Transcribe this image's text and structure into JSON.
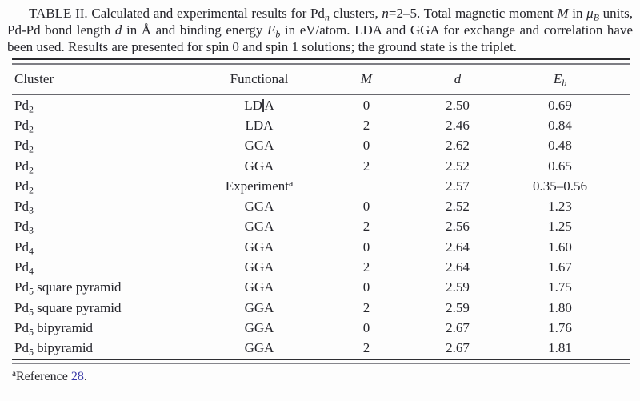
{
  "colors": {
    "reference_link": "#3a3aa8",
    "text": "#26262c",
    "rule_dark": "#2a2a2e",
    "rule_gray": "#7e7e84"
  },
  "caption": {
    "segments": [
      {
        "t": "TABLE II. Calculated and experimental results for Pd"
      },
      {
        "t": "n",
        "s": "sub",
        "i": true
      },
      {
        "t": " clusters, "
      },
      {
        "t": "n",
        "i": true
      },
      {
        "t": "=2–5. Total magnetic moment "
      },
      {
        "t": "M",
        "i": true
      },
      {
        "t": " in "
      },
      {
        "t": "μ",
        "i": true
      },
      {
        "t": "B",
        "s": "sub",
        "i": true
      },
      {
        "t": " units, Pd-Pd bond length "
      },
      {
        "t": "d",
        "i": true
      },
      {
        "t": " in Å and binding energy "
      },
      {
        "t": "E",
        "i": true
      },
      {
        "t": "b",
        "s": "sub",
        "i": true
      },
      {
        "t": " in eV/atom. LDA and GGA for exchange and correlation have been used. Results are presented for spin 0 and spin 1 solutions; the ground state is the triplet."
      }
    ]
  },
  "table": {
    "column_headers": [
      [
        {
          "t": "Cluster"
        }
      ],
      [
        {
          "t": "Functional"
        }
      ],
      [
        {
          "t": "M",
          "i": true
        }
      ],
      [
        {
          "t": "d",
          "i": true
        }
      ],
      [
        {
          "t": "E",
          "i": true
        },
        {
          "t": "b",
          "s": "sub",
          "i": true
        }
      ]
    ],
    "rows": [
      {
        "cells": [
          [
            {
              "t": "Pd"
            },
            {
              "t": "2",
              "s": "sub"
            }
          ],
          [
            {
              "t": "LD"
            },
            {
              "t": "",
              "s": "caret"
            },
            {
              "t": "A"
            }
          ],
          [
            {
              "t": "0"
            }
          ],
          [
            {
              "t": "2.50"
            }
          ],
          [
            {
              "t": "0.69"
            }
          ]
        ]
      },
      {
        "cells": [
          [
            {
              "t": "Pd"
            },
            {
              "t": "2",
              "s": "sub"
            }
          ],
          [
            {
              "t": "LDA"
            }
          ],
          [
            {
              "t": "2"
            }
          ],
          [
            {
              "t": "2.46"
            }
          ],
          [
            {
              "t": "0.84"
            }
          ]
        ]
      },
      {
        "cells": [
          [
            {
              "t": "Pd"
            },
            {
              "t": "2",
              "s": "sub"
            }
          ],
          [
            {
              "t": "GGA"
            }
          ],
          [
            {
              "t": "0"
            }
          ],
          [
            {
              "t": "2.62"
            }
          ],
          [
            {
              "t": "0.48"
            }
          ]
        ]
      },
      {
        "cells": [
          [
            {
              "t": "Pd"
            },
            {
              "t": "2",
              "s": "sub"
            }
          ],
          [
            {
              "t": "GGA"
            }
          ],
          [
            {
              "t": "2"
            }
          ],
          [
            {
              "t": "2.52"
            }
          ],
          [
            {
              "t": "0.65"
            }
          ]
        ]
      },
      {
        "cells": [
          [
            {
              "t": "Pd"
            },
            {
              "t": "2",
              "s": "sub"
            }
          ],
          [
            {
              "t": "Experiment"
            },
            {
              "t": "a",
              "s": "sup"
            }
          ],
          [],
          [
            {
              "t": "2.57"
            }
          ],
          [
            {
              "t": "0.35–0.56"
            }
          ]
        ]
      },
      {
        "cells": [
          [
            {
              "t": "Pd"
            },
            {
              "t": "3",
              "s": "sub"
            }
          ],
          [
            {
              "t": "GGA"
            }
          ],
          [
            {
              "t": "0"
            }
          ],
          [
            {
              "t": "2.52"
            }
          ],
          [
            {
              "t": "1.23"
            }
          ]
        ]
      },
      {
        "cells": [
          [
            {
              "t": "Pd"
            },
            {
              "t": "3",
              "s": "sub"
            }
          ],
          [
            {
              "t": "GGA"
            }
          ],
          [
            {
              "t": "2"
            }
          ],
          [
            {
              "t": "2.56"
            }
          ],
          [
            {
              "t": "1.25"
            }
          ]
        ]
      },
      {
        "cells": [
          [
            {
              "t": "Pd"
            },
            {
              "t": "4",
              "s": "sub"
            }
          ],
          [
            {
              "t": "GGA"
            }
          ],
          [
            {
              "t": "0"
            }
          ],
          [
            {
              "t": "2.64"
            }
          ],
          [
            {
              "t": "1.60"
            }
          ]
        ]
      },
      {
        "cells": [
          [
            {
              "t": "Pd"
            },
            {
              "t": "4",
              "s": "sub"
            }
          ],
          [
            {
              "t": "GGA"
            }
          ],
          [
            {
              "t": "2"
            }
          ],
          [
            {
              "t": "2.64"
            }
          ],
          [
            {
              "t": "1.67"
            }
          ]
        ]
      },
      {
        "cells": [
          [
            {
              "t": "Pd"
            },
            {
              "t": "5",
              "s": "sub"
            },
            {
              "t": " square pyramid"
            }
          ],
          [
            {
              "t": "GGA"
            }
          ],
          [
            {
              "t": "0"
            }
          ],
          [
            {
              "t": "2.59"
            }
          ],
          [
            {
              "t": "1.75"
            }
          ]
        ]
      },
      {
        "cells": [
          [
            {
              "t": "Pd"
            },
            {
              "t": "5",
              "s": "sub"
            },
            {
              "t": " square pyramid"
            }
          ],
          [
            {
              "t": "GGA"
            }
          ],
          [
            {
              "t": "2"
            }
          ],
          [
            {
              "t": "2.59"
            }
          ],
          [
            {
              "t": "1.80"
            }
          ]
        ]
      },
      {
        "cells": [
          [
            {
              "t": "Pd"
            },
            {
              "t": "5",
              "s": "sub"
            },
            {
              "t": " bipyramid"
            }
          ],
          [
            {
              "t": "GGA"
            }
          ],
          [
            {
              "t": "0"
            }
          ],
          [
            {
              "t": "2.67"
            }
          ],
          [
            {
              "t": "1.76"
            }
          ]
        ]
      },
      {
        "cells": [
          [
            {
              "t": "Pd"
            },
            {
              "t": "5",
              "s": "sub"
            },
            {
              "t": " bipyramid"
            }
          ],
          [
            {
              "t": "GGA"
            }
          ],
          [
            {
              "t": "2"
            }
          ],
          [
            {
              "t": "2.67"
            }
          ],
          [
            {
              "t": "1.81"
            }
          ]
        ]
      }
    ]
  },
  "footnote": {
    "segments": [
      {
        "t": "a",
        "s": "sup"
      },
      {
        "t": "Reference "
      },
      {
        "t": "28",
        "link": true
      },
      {
        "t": "."
      }
    ]
  }
}
